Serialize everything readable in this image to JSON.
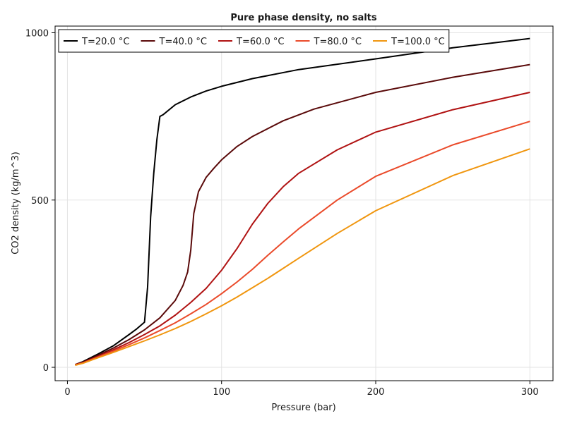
{
  "chart_data": {
    "type": "line",
    "title": "Pure phase density, no salts",
    "xlabel": "Pressure (bar)",
    "ylabel": "CO2 density (kg/m^3)",
    "xlim": [
      -8,
      315
    ],
    "ylim": [
      -40,
      1020
    ],
    "xticks": [
      0,
      100,
      200,
      300
    ],
    "yticks": [
      0,
      500,
      1000
    ],
    "grid": true,
    "legend_position": "top-left",
    "series": [
      {
        "name": "T=20.0 °C",
        "color": "#000000",
        "x": [
          5,
          10,
          20,
          30,
          40,
          45,
          50,
          52,
          54,
          56,
          58,
          60,
          62,
          70,
          80,
          90,
          100,
          120,
          150,
          200,
          250,
          300
        ],
        "y": [
          8,
          17,
          40,
          65,
          98,
          115,
          135,
          240,
          450,
          580,
          680,
          750,
          755,
          785,
          808,
          826,
          840,
          863,
          890,
          922,
          955,
          983
        ]
      },
      {
        "name": "T=40.0 °C",
        "color": "#5a0a0a",
        "x": [
          5,
          10,
          20,
          30,
          40,
          50,
          60,
          70,
          75,
          78,
          80,
          82,
          85,
          90,
          95,
          100,
          110,
          120,
          140,
          160,
          200,
          250,
          300
        ],
        "y": [
          8,
          15,
          36,
          58,
          83,
          112,
          148,
          200,
          245,
          285,
          350,
          460,
          525,
          568,
          595,
          620,
          660,
          690,
          737,
          772,
          822,
          867,
          905
        ]
      },
      {
        "name": "T=60.0 °C",
        "color": "#b01212",
        "x": [
          5,
          10,
          20,
          30,
          40,
          50,
          60,
          70,
          80,
          90,
          100,
          110,
          120,
          130,
          140,
          150,
          175,
          200,
          250,
          300
        ],
        "y": [
          8,
          14,
          33,
          53,
          74,
          98,
          124,
          156,
          194,
          236,
          290,
          355,
          428,
          490,
          540,
          580,
          650,
          703,
          770,
          822
        ]
      },
      {
        "name": "T=80.0 °C",
        "color": "#ea4a2a",
        "x": [
          5,
          10,
          20,
          30,
          40,
          50,
          60,
          70,
          80,
          90,
          100,
          110,
          120,
          130,
          140,
          150,
          175,
          200,
          250,
          300
        ],
        "y": [
          7,
          13,
          31,
          49,
          68,
          88,
          110,
          133,
          160,
          188,
          220,
          255,
          293,
          335,
          375,
          414,
          500,
          571,
          665,
          735
        ]
      },
      {
        "name": "T=100.0 °C",
        "color": "#f0960f",
        "x": [
          5,
          10,
          20,
          30,
          40,
          50,
          60,
          70,
          80,
          90,
          100,
          110,
          120,
          130,
          140,
          150,
          175,
          200,
          250,
          300
        ],
        "y": [
          6,
          12,
          29,
          45,
          62,
          79,
          97,
          116,
          137,
          160,
          184,
          210,
          238,
          266,
          296,
          326,
          400,
          468,
          573,
          653
        ]
      }
    ]
  }
}
